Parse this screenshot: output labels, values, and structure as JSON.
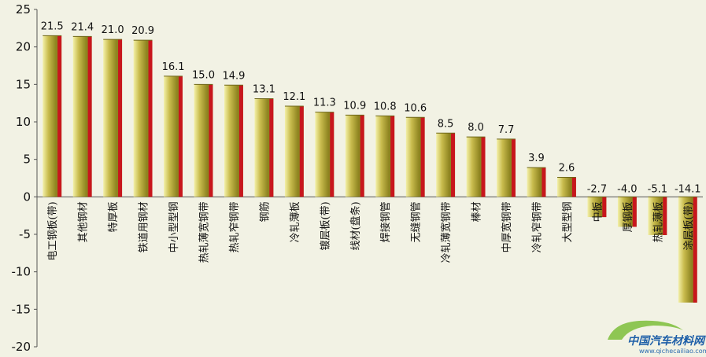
{
  "chart_data": {
    "type": "bar",
    "categories": [
      "电工钢板(带)",
      "其他钢材",
      "特厚板",
      "铁道用钢材",
      "中小型型钢",
      "热轧薄宽钢带",
      "热轧窄钢带",
      "钢筋",
      "冷轧薄板",
      "镀层板(带)",
      "线材(盘条)",
      "焊接钢管",
      "无缝钢管",
      "冷轧薄宽钢带",
      "棒材",
      "中厚宽钢带",
      "冷轧窄钢带",
      "大型型钢",
      "中板",
      "厚钢板",
      "热轧薄板",
      "涂层板(带)"
    ],
    "values": [
      21.5,
      21.4,
      21.0,
      20.9,
      16.1,
      15.0,
      14.9,
      13.1,
      12.1,
      11.3,
      10.9,
      10.8,
      10.6,
      8.5,
      8.0,
      7.7,
      3.9,
      2.6,
      -2.7,
      -4.0,
      -5.1,
      -14.1
    ],
    "value_labels": [
      "21.5",
      "21.4",
      "21.0",
      "20.9",
      "16.1",
      "15.0",
      "14.9",
      "13.1",
      "12.1",
      "11.3",
      "10.9",
      "10.8",
      "10.6",
      "8.5",
      "8.0",
      "7.7",
      "3.9",
      "2.6",
      "-2.7",
      "-4.0",
      "-5.1",
      "-14.1"
    ],
    "yticks": [
      -20,
      -15,
      -10,
      -5,
      0,
      5,
      10,
      15,
      20,
      25
    ],
    "ylim": [
      -20,
      25
    ],
    "grid": false,
    "title": "",
    "xlabel": "",
    "ylabel": ""
  },
  "colors": {
    "background": "#F2F2E4",
    "bar_light": "#F3F0A8",
    "bar_mid": "#C9BC4E",
    "bar_dark": "#8E8420",
    "bar_edge": "#C8161D",
    "axis": "#555555"
  },
  "watermark": {
    "name": "中国汽车材料网",
    "url": "www.qichecailiao.com",
    "icon": "car-logo-icon"
  }
}
